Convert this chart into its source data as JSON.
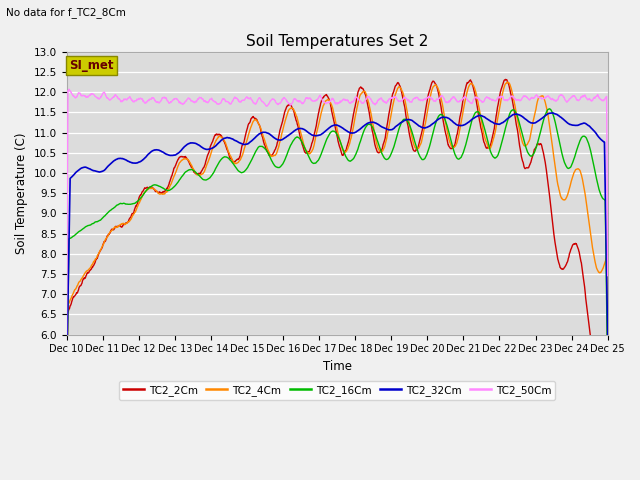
{
  "title": "Soil Temperatures Set 2",
  "annotation_text": "No data for f_TC2_8Cm",
  "xlabel": "Time",
  "ylabel": "Soil Temperature (C)",
  "ylim": [
    6.0,
    13.0
  ],
  "yticks": [
    6.0,
    6.5,
    7.0,
    7.5,
    8.0,
    8.5,
    9.0,
    9.5,
    10.0,
    10.5,
    11.0,
    11.5,
    12.0,
    12.5,
    13.0
  ],
  "bg_color": "#e8e8e8",
  "plot_bg": "#dcdcdc",
  "series_colors": {
    "TC2_2Cm": "#cc0000",
    "TC2_4Cm": "#ff8800",
    "TC2_16Cm": "#00bb00",
    "TC2_32Cm": "#0000cc",
    "TC2_50Cm": "#ff88ff"
  },
  "legend_box_color": "#cccc00",
  "legend_box_text": "SI_met",
  "figsize": [
    6.4,
    4.8
  ],
  "dpi": 100
}
